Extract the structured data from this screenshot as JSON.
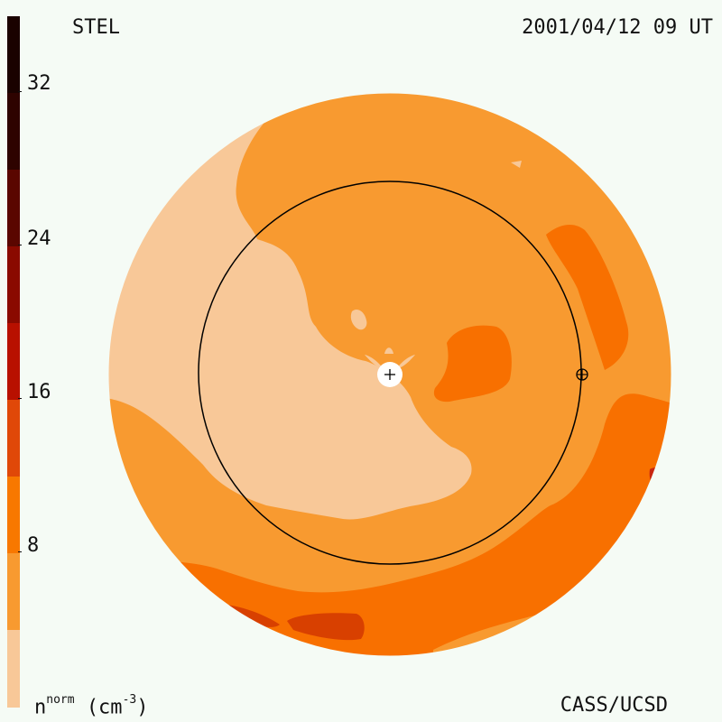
{
  "header": {
    "site": "STEL",
    "datetime": "2001/04/12 09 UT"
  },
  "footer": {
    "credit": "CASS/UCSD",
    "unit_symbol": "n",
    "unit_superscript": "norm",
    "unit_text": "(cm",
    "unit_exponent": "-3",
    "unit_close": ")"
  },
  "colorbar": {
    "ticks": [
      "32",
      "24",
      "16",
      "8"
    ],
    "colors": [
      "#1a0200",
      "#3d0500",
      "#6e0800",
      "#a01000",
      "#c82510",
      "#e04808",
      "#f87800",
      "#f89a30",
      "#f8c898"
    ]
  },
  "colors": {
    "lightest": "#f8c898",
    "light": "#f89a30",
    "mid": "#f87000",
    "dark": "#d84000",
    "background": "#f5fbf5"
  }
}
